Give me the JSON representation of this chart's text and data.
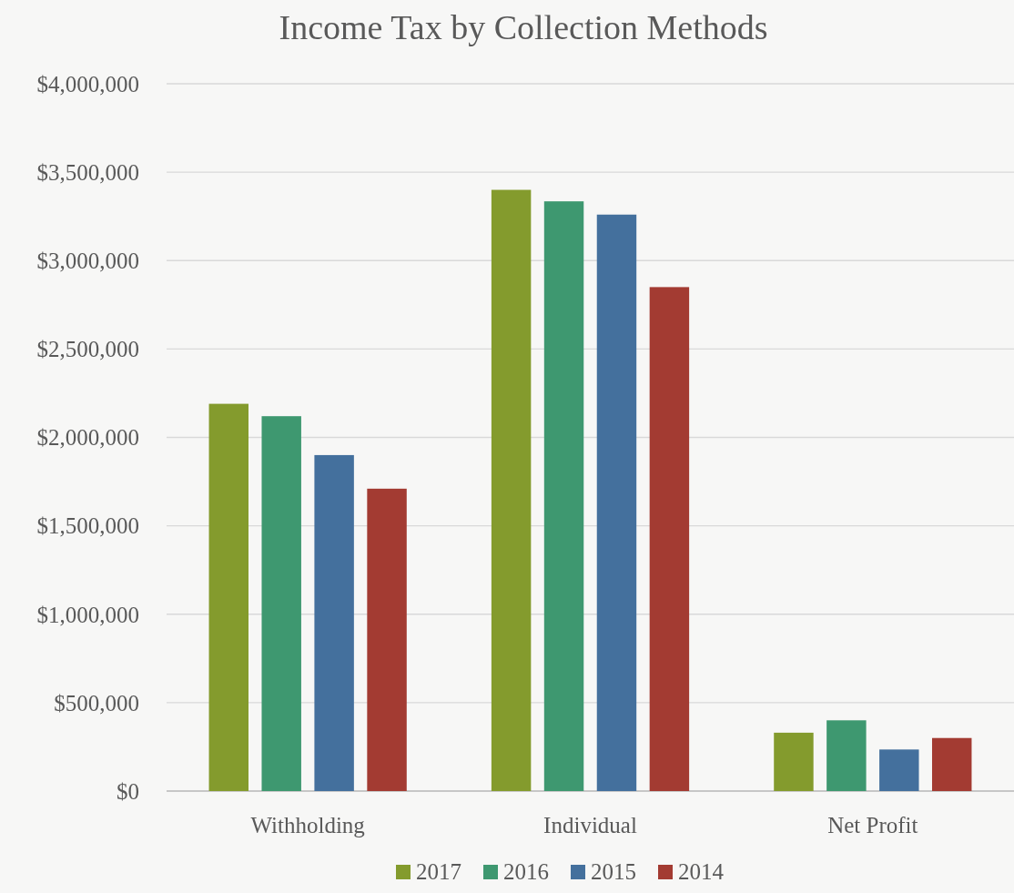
{
  "chart_data": {
    "type": "bar",
    "title": "Income Tax by Collection Methods",
    "categories": [
      "Withholding",
      "Individual",
      "Net Profit"
    ],
    "series": [
      {
        "name": "2017",
        "color": "#849b2d",
        "values": [
          2190000,
          3400000,
          330000
        ]
      },
      {
        "name": "2016",
        "color": "#3e9870",
        "values": [
          2120000,
          3335000,
          400000
        ]
      },
      {
        "name": "2015",
        "color": "#44709d",
        "values": [
          1900000,
          3260000,
          235000
        ]
      },
      {
        "name": "2014",
        "color": "#a33b32",
        "values": [
          1710000,
          2850000,
          300000
        ]
      }
    ],
    "ylim": [
      0,
      4000000
    ],
    "yticks": [
      {
        "value": 0,
        "label": "$0"
      },
      {
        "value": 500000,
        "label": "$500,000"
      },
      {
        "value": 1000000,
        "label": "$1,000,000"
      },
      {
        "value": 1500000,
        "label": "$1,500,000"
      },
      {
        "value": 2000000,
        "label": "$2,000,000"
      },
      {
        "value": 2500000,
        "label": "$2,500,000"
      },
      {
        "value": 3000000,
        "label": "$3,000,000"
      },
      {
        "value": 3500000,
        "label": "$3,500,000"
      },
      {
        "value": 4000000,
        "label": "$4,000,000"
      }
    ],
    "grid": "y",
    "legend": "bottom"
  }
}
